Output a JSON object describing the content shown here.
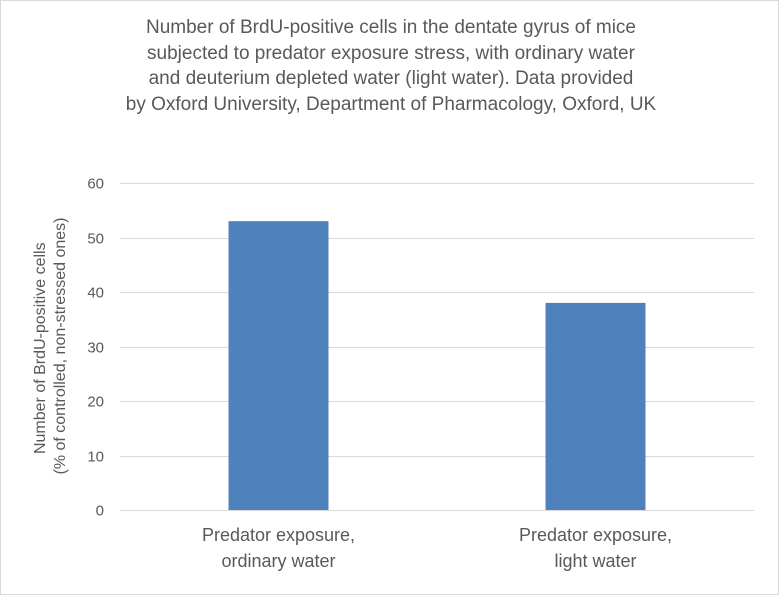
{
  "chart_data": {
    "type": "bar",
    "title_lines": [
      "Number of BrdU-positive cells in the dentate gyrus of mice",
      "subjected to predator exposure stress, with ordinary water",
      "and deuterium depleted water (light water). Data provided",
      "by Oxford University, Department of Pharmacology, Oxford, UK"
    ],
    "categories": [
      [
        "Predator exposure,",
        "ordinary water"
      ],
      [
        "Predator exposure,",
        "light water"
      ]
    ],
    "values": [
      53,
      38
    ],
    "ylabel_lines": [
      "Number of BrdU-positive cells",
      "(% of controlled, non-stressed ones)"
    ],
    "xlabel": "",
    "ylim": [
      0,
      60
    ],
    "yticks": [
      0,
      10,
      20,
      30,
      40,
      50,
      60
    ],
    "grid": true,
    "legend": "none",
    "colors": {
      "bar": "#4f81bd",
      "grid": "#d9d9d9",
      "text": "#595959"
    }
  }
}
